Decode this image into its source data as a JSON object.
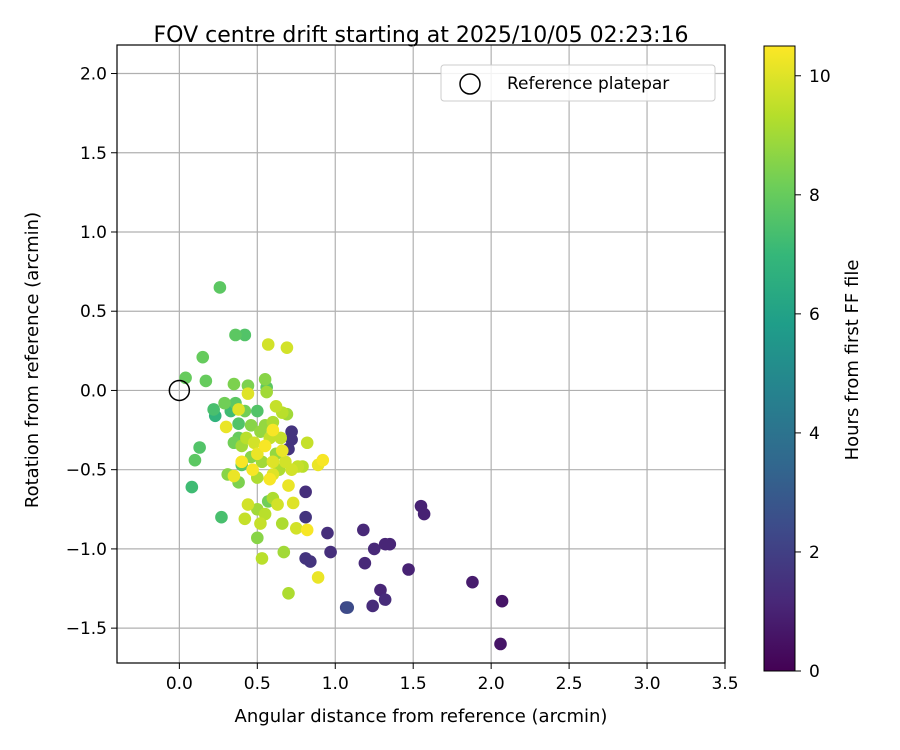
{
  "chart_data": {
    "type": "scatter",
    "title": "FOV centre drift starting at 2025/10/05 02:23:16",
    "xlabel": "Angular distance from reference (arcmin)",
    "ylabel": "Rotation from reference (arcmin)",
    "xlim": [
      -0.4,
      3.5
    ],
    "ylim": [
      -1.72,
      2.18
    ],
    "xticks": [
      0.0,
      0.5,
      1.0,
      1.5,
      2.0,
      2.5,
      3.0,
      3.5
    ],
    "xtick_labels": [
      "0.0",
      "0.5",
      "1.0",
      "1.5",
      "2.0",
      "2.5",
      "3.0",
      "3.5"
    ],
    "yticks": [
      -1.5,
      -1.0,
      -0.5,
      0.0,
      0.5,
      1.0,
      1.5,
      2.0
    ],
    "ytick_labels": [
      "−1.5",
      "−1.0",
      "−0.5",
      "0.0",
      "0.5",
      "1.0",
      "1.5",
      "2.0"
    ],
    "grid": true,
    "legend": {
      "position": "top-right",
      "entries": [
        "Reference platepar"
      ]
    },
    "reference_point": {
      "x": 0.0,
      "y": 0.0,
      "label": "Reference platepar"
    },
    "colorbar": {
      "label": "Hours from first FF file",
      "range": [
        0,
        10.5
      ],
      "ticks": [
        0,
        2,
        4,
        6,
        8,
        10
      ],
      "tick_labels": [
        "0",
        "2",
        "4",
        "6",
        "8",
        "10"
      ],
      "colormap_stops": [
        "#440154",
        "#482878",
        "#3e4989",
        "#31688e",
        "#26828e",
        "#1f9e89",
        "#35b779",
        "#6ece58",
        "#b5de2b",
        "#fde725"
      ]
    },
    "series": [
      {
        "name": "FOV centre drift",
        "points": [
          [
            2.06,
            -1.6,
            0.6
          ],
          [
            2.07,
            -1.33,
            0.6
          ],
          [
            1.88,
            -1.21,
            0.8
          ],
          [
            1.55,
            -0.73,
            1.0
          ],
          [
            1.57,
            -0.78,
            1.0
          ],
          [
            1.47,
            -1.13,
            1.0
          ],
          [
            1.35,
            -0.97,
            1.1
          ],
          [
            1.32,
            -0.97,
            1.1
          ],
          [
            1.29,
            -1.26,
            1.1
          ],
          [
            1.32,
            -1.32,
            1.3
          ],
          [
            1.24,
            -1.36,
            1.3
          ],
          [
            1.25,
            -1.0,
            1.2
          ],
          [
            1.18,
            -0.88,
            1.2
          ],
          [
            1.19,
            -1.09,
            1.2
          ],
          [
            1.07,
            -1.37,
            2.2
          ],
          [
            1.08,
            -1.37,
            2.4
          ],
          [
            0.97,
            -1.02,
            1.4
          ],
          [
            0.95,
            -0.9,
            1.4
          ],
          [
            0.84,
            -1.08,
            1.6
          ],
          [
            0.81,
            -1.06,
            1.6
          ],
          [
            0.81,
            -0.8,
            1.6
          ],
          [
            0.81,
            -0.64,
            1.4
          ],
          [
            0.72,
            -0.31,
            1.6
          ],
          [
            0.72,
            -0.26,
            1.6
          ],
          [
            0.7,
            -0.37,
            1.6
          ],
          [
            0.26,
            0.65,
            7.8
          ],
          [
            0.36,
            0.35,
            7.8
          ],
          [
            0.42,
            0.35,
            7.6
          ],
          [
            0.15,
            0.21,
            8.0
          ],
          [
            0.04,
            0.08,
            8.0
          ],
          [
            0.17,
            0.06,
            8.0
          ],
          [
            0.35,
            0.04,
            8.4
          ],
          [
            0.44,
            0.03,
            8.4
          ],
          [
            0.55,
            0.07,
            8.6
          ],
          [
            0.56,
            0.02,
            7.8
          ],
          [
            0.22,
            -0.12,
            7.4
          ],
          [
            0.23,
            -0.16,
            6.8
          ],
          [
            0.29,
            -0.08,
            8.2
          ],
          [
            0.33,
            -0.13,
            7.2
          ],
          [
            0.36,
            -0.08,
            7.8
          ],
          [
            0.38,
            -0.21,
            7.6
          ],
          [
            0.42,
            -0.13,
            8.2
          ],
          [
            0.46,
            -0.22,
            8.6
          ],
          [
            0.5,
            -0.13,
            7.6
          ],
          [
            0.52,
            -0.26,
            8.8
          ],
          [
            0.56,
            -0.01,
            9.0
          ],
          [
            0.6,
            -0.2,
            9.2
          ],
          [
            0.62,
            -0.1,
            9.6
          ],
          [
            0.66,
            -0.14,
            9.4
          ],
          [
            0.69,
            -0.15,
            9.0
          ],
          [
            0.38,
            -0.3,
            8.0
          ],
          [
            0.35,
            -0.33,
            8.2
          ],
          [
            0.4,
            -0.35,
            9.0
          ],
          [
            0.43,
            -0.3,
            9.4
          ],
          [
            0.46,
            -0.42,
            8.6
          ],
          [
            0.48,
            -0.33,
            9.8
          ],
          [
            0.5,
            -0.4,
            10.2
          ],
          [
            0.53,
            -0.45,
            9.0
          ],
          [
            0.55,
            -0.35,
            10.4
          ],
          [
            0.58,
            -0.3,
            9.6
          ],
          [
            0.6,
            -0.45,
            10.0
          ],
          [
            0.62,
            -0.4,
            8.8
          ],
          [
            0.64,
            -0.5,
            9.2
          ],
          [
            0.66,
            -0.38,
            10.2
          ],
          [
            0.68,
            -0.45,
            9.8
          ],
          [
            0.1,
            -0.44,
            7.8
          ],
          [
            0.13,
            -0.36,
            7.6
          ],
          [
            0.08,
            -0.61,
            7.2
          ],
          [
            0.27,
            -0.8,
            7.4
          ],
          [
            0.31,
            -0.53,
            8.6
          ],
          [
            0.35,
            -0.54,
            10.2
          ],
          [
            0.38,
            -0.58,
            8.4
          ],
          [
            0.4,
            -0.47,
            7.8
          ],
          [
            0.44,
            -0.72,
            9.8
          ],
          [
            0.42,
            -0.81,
            9.6
          ],
          [
            0.5,
            -0.75,
            9.0
          ],
          [
            0.52,
            -0.84,
            9.6
          ],
          [
            0.5,
            -0.93,
            8.6
          ],
          [
            0.53,
            -1.06,
            9.4
          ],
          [
            0.55,
            -0.78,
            9.4
          ],
          [
            0.57,
            -0.7,
            8.2
          ],
          [
            0.6,
            -0.68,
            9.2
          ],
          [
            0.63,
            -0.72,
            9.8
          ],
          [
            0.66,
            -0.84,
            9.2
          ],
          [
            0.67,
            -1.02,
            9.0
          ],
          [
            0.7,
            -1.28,
            9.2
          ],
          [
            0.7,
            -0.6,
            10.2
          ],
          [
            0.73,
            -0.71,
            10.0
          ],
          [
            0.75,
            -0.87,
            9.8
          ],
          [
            0.79,
            -0.48,
            9.4
          ],
          [
            0.82,
            -0.33,
            9.6
          ],
          [
            0.82,
            -0.88,
            10.4
          ],
          [
            0.89,
            -1.18,
            10.2
          ],
          [
            0.89,
            -0.47,
            10.2
          ],
          [
            0.92,
            -0.44,
            10.4
          ],
          [
            0.57,
            0.29,
            9.8
          ],
          [
            0.69,
            0.27,
            9.8
          ],
          [
            0.3,
            -0.23,
            10.2
          ],
          [
            0.38,
            -0.12,
            10.0
          ],
          [
            0.6,
            -0.53,
            10.0
          ],
          [
            0.58,
            -0.56,
            10.4
          ],
          [
            0.5,
            -0.55,
            9.2
          ],
          [
            0.47,
            -0.5,
            10.4
          ],
          [
            0.72,
            -0.5,
            9.8
          ],
          [
            0.76,
            -0.48,
            9.6
          ],
          [
            0.44,
            -0.02,
            10.0
          ],
          [
            0.6,
            -0.25,
            10.4
          ],
          [
            0.65,
            -0.3,
            9.6
          ],
          [
            0.55,
            -0.22,
            8.8
          ],
          [
            0.4,
            -0.45,
            10.4
          ]
        ]
      }
    ]
  }
}
